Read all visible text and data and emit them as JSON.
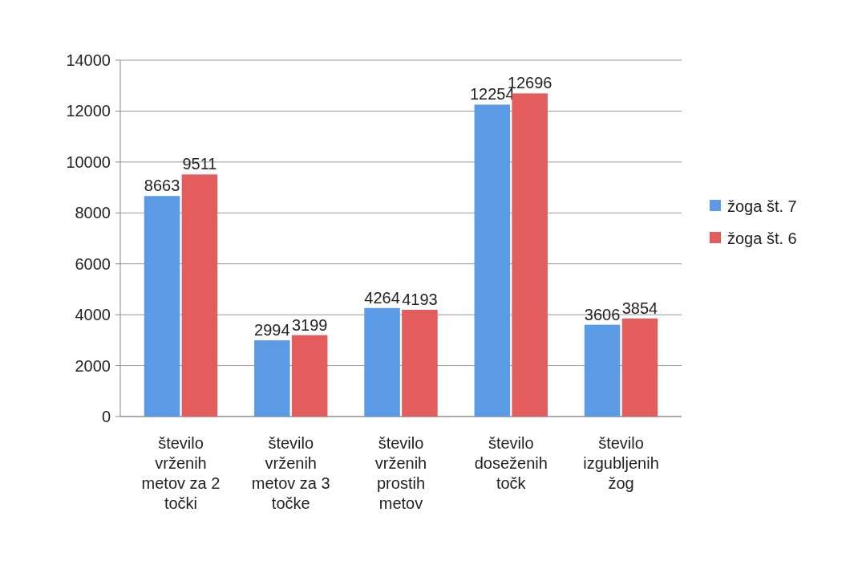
{
  "chart_data": {
    "type": "bar",
    "categories": [
      "število vrženih metov za 2 točki",
      "število vrženih metov za 3 točke",
      "število vrženih prostih metov",
      "število doseženih točk",
      "število izgubljenih žog"
    ],
    "series": [
      {
        "name": "žoga št. 7",
        "color": "#5b9be6",
        "values": [
          8663,
          2994,
          4264,
          12254,
          3606
        ]
      },
      {
        "name": "žoga št. 6",
        "color": "#e35d5d",
        "values": [
          9511,
          3199,
          4193,
          12696,
          3854
        ]
      }
    ],
    "ylim": [
      0,
      14000
    ],
    "yticks": [
      0,
      2000,
      4000,
      6000,
      8000,
      10000,
      12000,
      14000
    ],
    "grid": "y",
    "legend": "right",
    "data_labels": true
  }
}
